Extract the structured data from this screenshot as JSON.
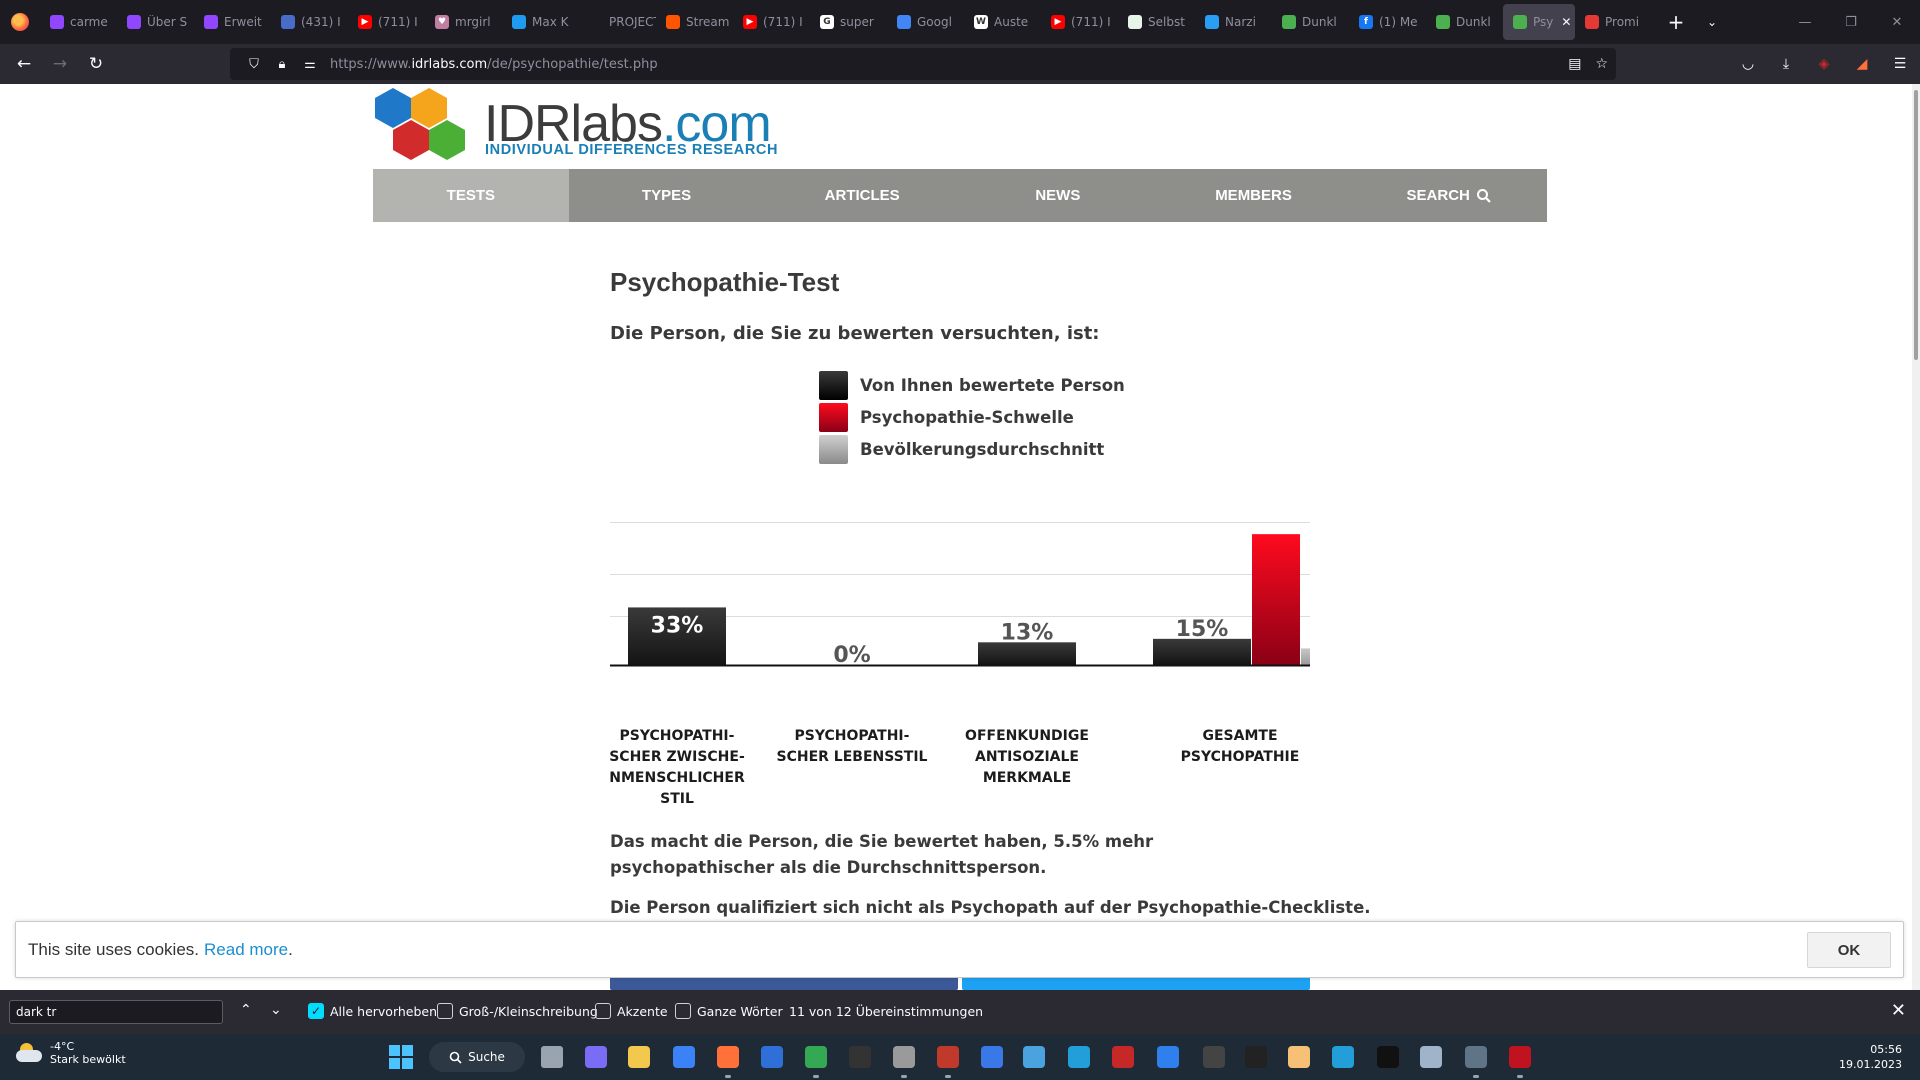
{
  "browser": {
    "tabs": [
      {
        "title": "carme",
        "fav_color": "#9146ff",
        "fav_glyph": ""
      },
      {
        "title": "Über S",
        "fav_color": "#9146ff",
        "fav_glyph": ""
      },
      {
        "title": "Erweit",
        "fav_color": "#9146ff",
        "fav_glyph": ""
      },
      {
        "title": "(431) I",
        "fav_color": "#4a6cc9",
        "fav_glyph": ""
      },
      {
        "title": "(711) I",
        "fav_color": "#ff0000",
        "fav_glyph": "▶"
      },
      {
        "title": "mrgirl",
        "fav_color": "#c07fa0",
        "fav_glyph": "♥"
      },
      {
        "title": "Max K",
        "fav_color": "#1d9bf0",
        "fav_glyph": ""
      },
      {
        "title": "PROJECT S",
        "fav_color": "#1c1b22",
        "fav_glyph": ""
      },
      {
        "title": "Stream",
        "fav_color": "#ff5500",
        "fav_glyph": ""
      },
      {
        "title": "(711) I",
        "fav_color": "#ff0000",
        "fav_glyph": "▶"
      },
      {
        "title": "super",
        "fav_color": "#ffffff",
        "fav_glyph": "G"
      },
      {
        "title": "Googl",
        "fav_color": "#4285f4",
        "fav_glyph": ""
      },
      {
        "title": "Auste",
        "fav_color": "#ffffff",
        "fav_glyph": "W"
      },
      {
        "title": "(711) I",
        "fav_color": "#ff0000",
        "fav_glyph": "▶"
      },
      {
        "title": "Selbst",
        "fav_color": "#e6f4ea",
        "fav_glyph": ""
      },
      {
        "title": "Narzi",
        "fav_color": "#2a9df4",
        "fav_glyph": ""
      },
      {
        "title": "Dunkl",
        "fav_color": "#4caf50",
        "fav_glyph": ""
      },
      {
        "title": "(1) Me",
        "fav_color": "#1877f2",
        "fav_glyph": "f"
      },
      {
        "title": "Dunkl",
        "fav_color": "#4caf50",
        "fav_glyph": ""
      }
    ],
    "active_tab": {
      "title": "Psy",
      "fav_color": "#4caf50"
    },
    "last_tab": {
      "title": "Promi",
      "fav_color": "#e53935"
    },
    "url_prefix": "https://www.",
    "url_domain": "idrlabs.com",
    "url_path": "/de/psychopathie/test.php"
  },
  "site": {
    "logo_main": "IDRlabs",
    "logo_suffix": ".com",
    "logo_tagline": "INDIVIDUAL DIFFERENCES RESEARCH",
    "menu": [
      "TESTS",
      "TYPES",
      "ARTICLES",
      "NEWS",
      "MEMBERS",
      "SEARCH"
    ]
  },
  "article": {
    "title": "Psychopathie-Test",
    "subtitle": "Die Person, die Sie zu bewerten versuchten, ist:",
    "legend": [
      {
        "label": "Von Ihnen bewertete Person",
        "color": "#111111"
      },
      {
        "label": "Psychopathie-Schwelle",
        "color": "#c8001e"
      },
      {
        "label": "Bevölkerungsdurchschnitt",
        "color": "#a6a6a6"
      }
    ],
    "result_text_1": "Das macht die Person, die Sie bewertet haben, 5.5% mehr psychopathischer als die Durchschnittsperson.",
    "result_text_2": "Die Person qualifiziert sich nicht als Psychopath auf der Psychopathie-Checkliste."
  },
  "chart_data": {
    "type": "bar",
    "categories": [
      "PSYCHOPATHI-SCHER ZWISCHE-NMENSCHLICHER STIL",
      "PSYCHOPATHI-SCHER LEBENSSTIL",
      "OFFENKUNDIGE ANTISOZIALE MERKMALE",
      "GESAMTE PSYCHOPATHIE"
    ],
    "category_lines": [
      [
        "PSYCHOPATHI-",
        "SCHER ZWISCHE-",
        "NMENSCHLICHER",
        "STIL"
      ],
      [
        "PSYCHOPATHI-",
        "SCHER LEBENSSTIL"
      ],
      [
        "OFFENKUNDIGE",
        "ANTISOZIALE",
        "MERKMALE"
      ],
      [
        "GESAMTE",
        "PSYCHOPATHIE"
      ]
    ],
    "series": [
      {
        "name": "Von Ihnen bewertete Person",
        "values": [
          33,
          0,
          13,
          15
        ],
        "labels": [
          "33%",
          "0%",
          "13%",
          "15%"
        ]
      },
      {
        "name": "Psychopathie-Schwelle",
        "values": [
          null,
          null,
          null,
          75
        ]
      },
      {
        "name": "Bevölkerungsdurchschnitt",
        "values": [
          null,
          null,
          null,
          9.5
        ]
      }
    ],
    "ylim": [
      0,
      100
    ],
    "grid": true
  },
  "cookie": {
    "text": "This site uses cookies.",
    "link": "Read more",
    "period": ".",
    "button": "OK"
  },
  "findbar": {
    "query": "dark tr",
    "highlight_all": "Alle hervorheben",
    "match_case": "Groß-/Kleinschreibung",
    "accents": "Akzente",
    "whole_words": "Ganze Wörter",
    "status": "11 von 12 Übereinstimmungen"
  },
  "taskbar": {
    "temp": "-4°C",
    "weather": "Stark bewölkt",
    "search_label": "Suche",
    "time": "05:56",
    "date": "19.01.2023",
    "app_colors": [
      "#9aa4b0",
      "#7b6cf6",
      "#f2c94c",
      "#3b82f6",
      "#ff7139",
      "#2f6fd8",
      "#34a853",
      "#333333",
      "#9a9a9a",
      "#c0392b",
      "#3b78e7",
      "#4aa3df",
      "#229ed9",
      "#c62828",
      "#2f80ed",
      "#444444",
      "#222222",
      "#f6c177",
      "#229ed9",
      "#111111",
      "#9fb4c9",
      "#5f7486",
      "#c1121f"
    ]
  }
}
